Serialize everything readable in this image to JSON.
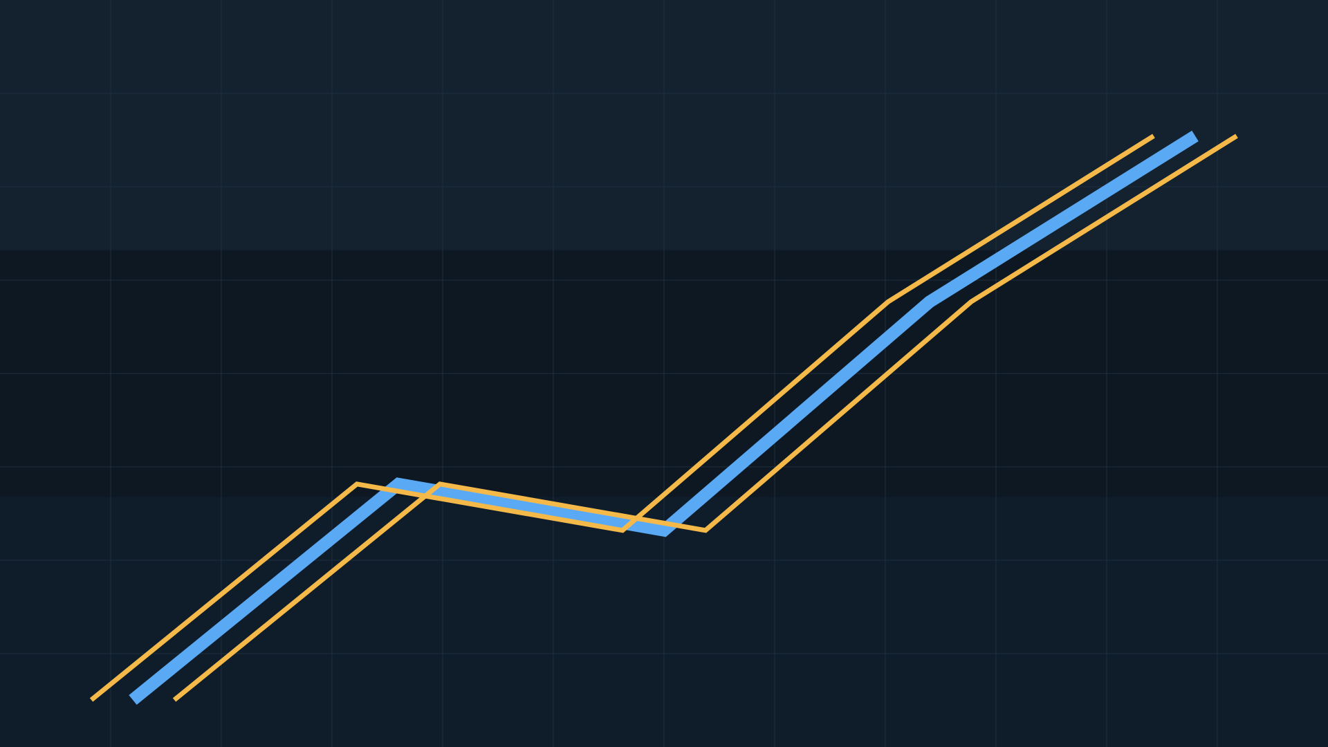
{
  "chart_data": {
    "type": "line",
    "title": "",
    "xlabel": "",
    "ylabel": "",
    "grid": true,
    "legend": "none",
    "x": [
      0,
      1,
      2,
      3,
      4
    ],
    "xlim": [
      -0.5,
      4.5
    ],
    "ylim": [
      0,
      100
    ],
    "series": [
      {
        "values": [
          6.3,
          35.2,
          29.0,
          59.6,
          81.8
        ],
        "color": "#5aa9f5",
        "style": "thick"
      },
      {
        "values": [
          6.3,
          35.2,
          29.0,
          59.6,
          81.8
        ],
        "color": "#f5b94a",
        "style": "outline-upper"
      },
      {
        "values": [
          6.3,
          35.2,
          29.0,
          59.6,
          81.8
        ],
        "color": "#f5b94a",
        "style": "outline-lower"
      }
    ],
    "bands": [
      {
        "from": 66.5,
        "to": 100,
        "color": "#14222f"
      },
      {
        "from": 33.5,
        "to": 66.5,
        "color": "#0d1822"
      },
      {
        "from": 0,
        "to": 33.5,
        "color": "#0f1c2a"
      }
    ],
    "colors": {
      "background": "#0f1b29",
      "grid": "#1c2c3b"
    }
  }
}
